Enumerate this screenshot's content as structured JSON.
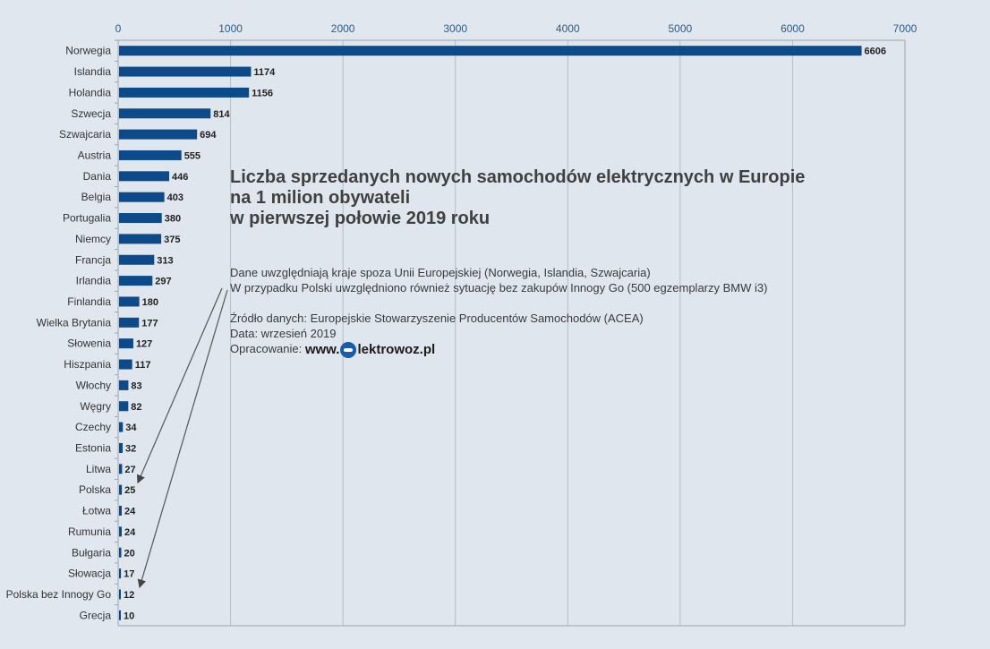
{
  "chart_data": {
    "type": "bar",
    "orientation": "horizontal",
    "title_lines": [
      "Liczba sprzedanych nowych samochodów elektrycznych w Europie",
      "na 1 milion obywateli",
      "w pierwszej połowie 2019 roku"
    ],
    "categories": [
      "Norwegia",
      "Islandia",
      "Holandia",
      "Szwecja",
      "Szwajcaria",
      "Austria",
      "Dania",
      "Belgia",
      "Portugalia",
      "Niemcy",
      "Francja",
      "Irlandia",
      "Finlandia",
      "Wielka Brytania",
      "Słowenia",
      "Hiszpania",
      "Włochy",
      "Węgry",
      "Czechy",
      "Estonia",
      "Litwa",
      "Polska",
      "Łotwa",
      "Rumunia",
      "Bułgaria",
      "Słowacja",
      "Polska bez Innogy Go",
      "Grecja"
    ],
    "values": [
      6606,
      1174,
      1156,
      814,
      694,
      555,
      446,
      403,
      380,
      375,
      313,
      297,
      180,
      177,
      127,
      117,
      83,
      82,
      34,
      32,
      27,
      25,
      24,
      24,
      20,
      17,
      12,
      10
    ],
    "xlim": [
      0,
      7000
    ],
    "xticks": [
      "0",
      "1000",
      "2000",
      "3000",
      "4000",
      "5000",
      "6000",
      "7000"
    ],
    "xtick_values": [
      0,
      1000,
      2000,
      3000,
      4000,
      5000,
      6000,
      7000
    ],
    "grid": true,
    "axis_position": "top",
    "bar_color": "#0d4a8a"
  },
  "notes": {
    "line1": "Dane uwzględniają kraje spoza Unii Europejskiej (Norwegia, Islandia, Szwajcaria)",
    "line2": "W przypadku Polski uwzględniono również sytuację bez zakupów Innogy Go (500 egzemplarzy BMW i3)",
    "source": "Źródło danych: Europejskie Stowarzyszenie Producentów Samochodów (ACEA)",
    "date": "Data: wrzesień 2019",
    "prepared_label": "Opracowanie:",
    "brand_prefix": "www.",
    "brand_suffix": "lektrowoz.pl"
  }
}
